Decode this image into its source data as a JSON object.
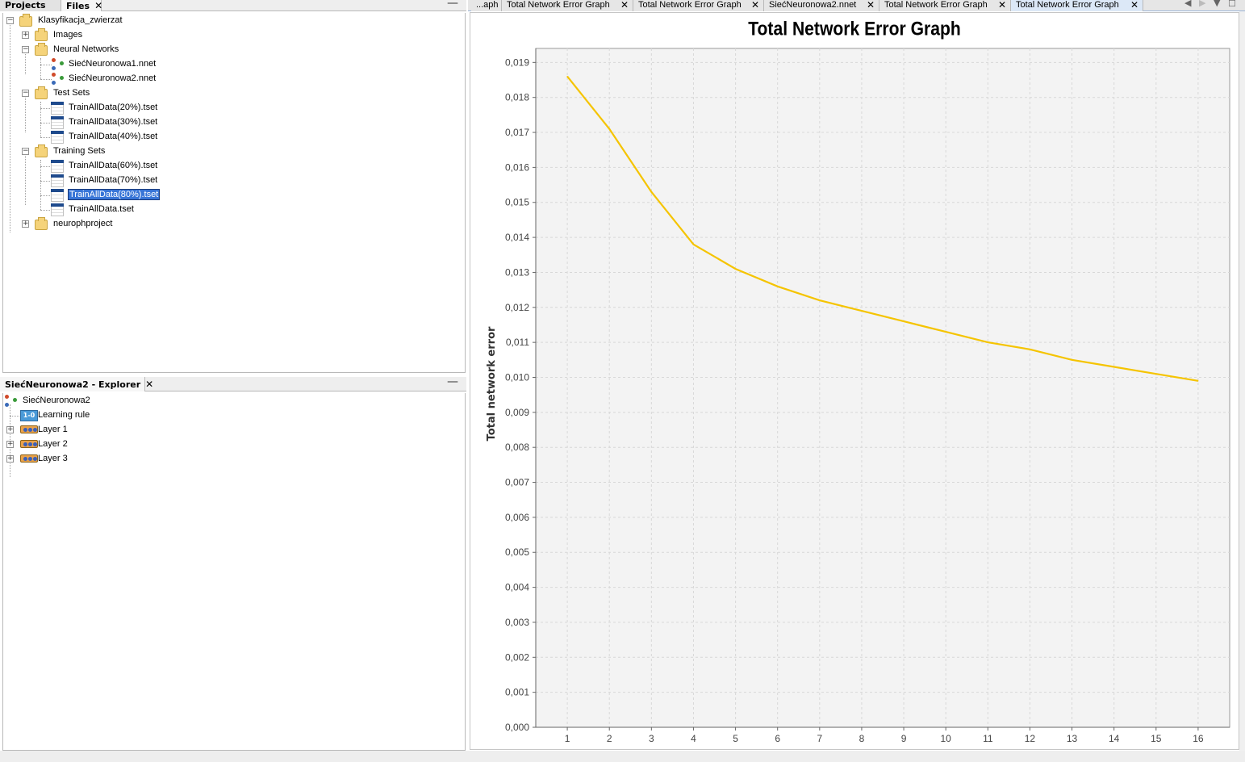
{
  "projects_panel": {
    "tabs": [
      {
        "label": "Projects"
      },
      {
        "label": "Files"
      }
    ],
    "tree": {
      "root": "Klasyfikacja_zwierzat",
      "images": "Images",
      "neural_networks": "Neural Networks",
      "nn_items": [
        "SiećNeuronowa1.nnet",
        "SiećNeuronowa2.nnet"
      ],
      "test_sets": "Test Sets",
      "test_items": [
        "TrainAllData(20%).tset",
        "TrainAllData(30%).tset",
        "TrainAllData(40%).tset"
      ],
      "training_sets": "Training Sets",
      "training_items": [
        "TrainAllData(60%).tset",
        "TrainAllData(70%).tset",
        "TrainAllData(80%).tset",
        "TrainAllData.tset"
      ],
      "selected_item": "TrainAllData(80%).tset",
      "other_project": "neurophproject"
    }
  },
  "explorer_panel": {
    "title": "SiećNeuronowa2 - Explorer",
    "root": "SiećNeuronowa2",
    "rule_icon_text": "1-0",
    "items": [
      "Learning rule",
      "Layer 1",
      "Layer 2",
      "Layer 3"
    ]
  },
  "editor_tabs": [
    {
      "label": "...aph"
    },
    {
      "label": "Total Network Error Graph"
    },
    {
      "label": "Total Network Error Graph"
    },
    {
      "label": "SiećNeuronowa2.nnet"
    },
    {
      "label": "Total Network Error Graph"
    },
    {
      "label": "Total Network Error Graph",
      "active": true
    }
  ],
  "colors": {
    "series": "#f5c400",
    "plot_bg": "#f3f3f3",
    "selection": "#3875d7"
  },
  "chart_data": {
    "type": "line",
    "title": "Total Network Error Graph",
    "xlabel": "",
    "ylabel": "Total network error",
    "x": [
      1,
      2,
      3,
      4,
      5,
      6,
      7,
      8,
      9,
      10,
      11,
      12,
      13,
      14,
      15,
      16
    ],
    "y": [
      0.0186,
      0.0171,
      0.0153,
      0.0138,
      0.0131,
      0.0126,
      0.0122,
      0.0119,
      0.0116,
      0.0113,
      0.011,
      0.0108,
      0.0105,
      0.0103,
      0.0101,
      0.0099
    ],
    "ylim": [
      0,
      0.0194
    ],
    "yticks": [
      "0,000",
      "0,001",
      "0,002",
      "0,003",
      "0,004",
      "0,005",
      "0,006",
      "0,007",
      "0,008",
      "0,009",
      "0,010",
      "0,011",
      "0,012",
      "0,013",
      "0,014",
      "0,015",
      "0,016",
      "0,017",
      "0,018",
      "0,019"
    ],
    "grid": true,
    "legend": "none"
  }
}
